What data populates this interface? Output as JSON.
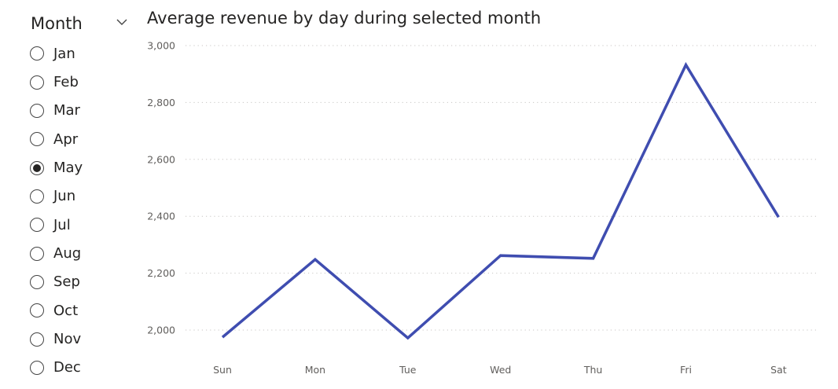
{
  "slicer": {
    "title": "Month",
    "chevron_icon": "chevron-down-icon",
    "selected": "May",
    "options": [
      "Jan",
      "Feb",
      "Mar",
      "Apr",
      "May",
      "Jun",
      "Jul",
      "Aug",
      "Sep",
      "Oct",
      "Nov",
      "Dec"
    ]
  },
  "chart": {
    "title": "Average revenue by day during selected month"
  },
  "chart_data": {
    "type": "line",
    "title": "Average revenue by day during selected month",
    "xlabel": "",
    "ylabel": "",
    "categories": [
      "Sun",
      "Mon",
      "Tue",
      "Wed",
      "Thu",
      "Fri",
      "Sat"
    ],
    "series": [
      {
        "values": [
          1975,
          2248,
          1972,
          2262,
          2252,
          2932,
          2397
        ],
        "color": "#3F4DB0"
      }
    ],
    "yticks": [
      2000,
      2200,
      2400,
      2600,
      2800,
      3000
    ],
    "ytick_labels": [
      "2,000",
      "2,200",
      "2,400",
      "2,600",
      "2,800",
      "3,000"
    ],
    "ylim": [
      1950,
      3000
    ],
    "grid": true,
    "grid_color": "#C8C6C4",
    "legend": "none"
  }
}
